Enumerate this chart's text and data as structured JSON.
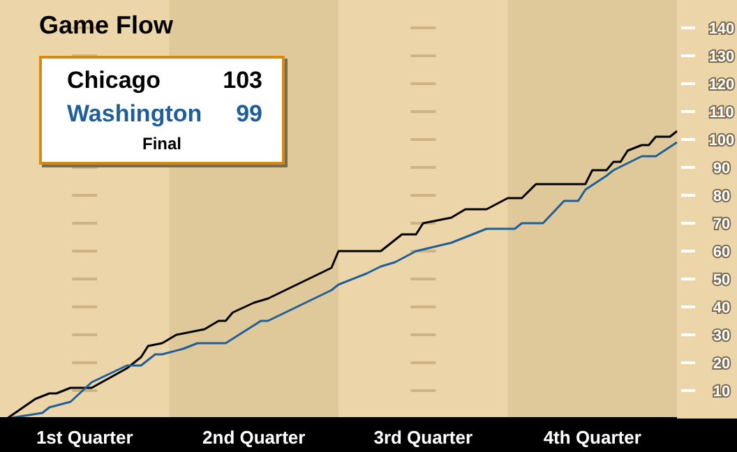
{
  "chart_data": {
    "type": "line",
    "title": "Game Flow",
    "categories": [
      null,
      null,
      null,
      null,
      null,
      null,
      null,
      null,
      null,
      null,
      null,
      null,
      "1st Quarter",
      null,
      null,
      null,
      null,
      null,
      null,
      null,
      null,
      null,
      null,
      null,
      null,
      null,
      null,
      null,
      null,
      null,
      null,
      null,
      null,
      null,
      null,
      null,
      "2nd Quarter",
      null,
      null,
      null,
      null,
      null,
      null,
      null,
      null,
      null,
      null,
      null,
      null,
      null,
      null,
      null,
      null,
      null,
      null,
      null,
      null,
      null,
      null,
      null,
      "3rd Quarter",
      null,
      null,
      null,
      null,
      null,
      null,
      null,
      null,
      null,
      null,
      null,
      null,
      null,
      null,
      null,
      null,
      null,
      null,
      null,
      null,
      null,
      null,
      null,
      "4th Quarter",
      null,
      null,
      null,
      null,
      null,
      null,
      null,
      null,
      null,
      null,
      null,
      null
    ],
    "series": [
      {
        "name": "Chicago",
        "color": "#000000",
        "values": [
          null,
          0,
          null,
          null,
          null,
          7,
          null,
          9,
          9,
          null,
          11,
          null,
          null,
          11,
          null,
          null,
          null,
          null,
          18,
          null,
          22,
          26,
          null,
          27,
          null,
          30,
          null,
          null,
          null,
          32,
          null,
          35,
          35,
          38,
          null,
          null,
          41.5,
          null,
          43,
          null,
          null,
          null,
          null,
          null,
          null,
          null,
          null,
          54,
          60,
          null,
          null,
          null,
          null,
          null,
          60,
          null,
          null,
          66,
          null,
          66,
          70,
          null,
          null,
          null,
          72,
          null,
          75,
          null,
          null,
          75,
          null,
          null,
          79,
          null,
          79,
          null,
          84,
          null,
          null,
          null,
          null,
          null,
          null,
          84,
          89,
          null,
          89,
          92,
          92,
          96,
          null,
          98,
          98,
          101,
          null,
          101,
          103
        ]
      },
      {
        "name": "Washington",
        "color": "#1f5f99",
        "values": [
          null,
          0,
          null,
          null,
          null,
          null,
          2,
          4,
          null,
          null,
          6,
          null,
          null,
          13,
          null,
          null,
          null,
          null,
          19,
          null,
          19,
          null,
          23,
          23,
          null,
          null,
          25,
          null,
          27,
          null,
          null,
          null,
          27,
          null,
          null,
          null,
          null,
          35,
          35,
          null,
          null,
          null,
          null,
          null,
          null,
          null,
          null,
          46,
          48,
          null,
          null,
          null,
          52,
          null,
          54.5,
          null,
          56,
          null,
          null,
          60,
          null,
          null,
          null,
          null,
          63,
          null,
          null,
          null,
          null,
          68,
          null,
          null,
          null,
          68,
          70,
          null,
          null,
          70,
          null,
          null,
          78,
          null,
          78,
          82,
          null,
          null,
          87,
          89,
          null,
          null,
          null,
          94,
          null,
          94,
          null,
          null,
          99
        ]
      }
    ],
    "annotations": [
      "103",
      "99",
      "Final"
    ],
    "ylim": [
      0,
      150
    ],
    "yticks": [
      10,
      20,
      30,
      40,
      50,
      60,
      70,
      80,
      90,
      100,
      110,
      120,
      130,
      140
    ],
    "grid": "y",
    "legend": "top left"
  }
}
